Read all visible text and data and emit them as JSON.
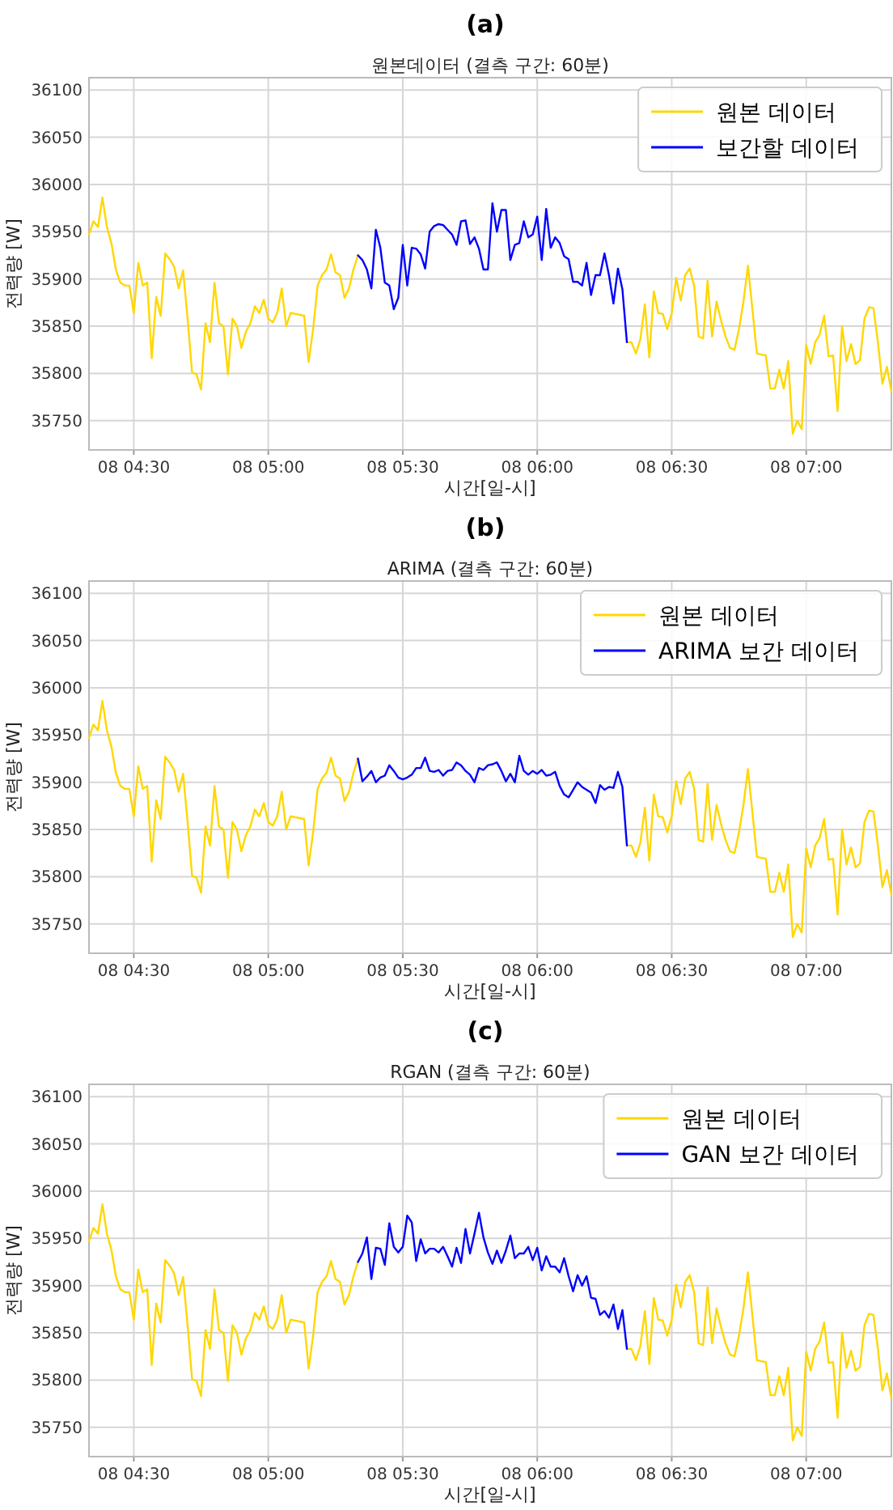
{
  "chart_data": [
    {
      "type": "line",
      "title": "(a)",
      "subtitle": "원본데이터 (결측 구간: 60분)",
      "xlabel": "시간[일-시]",
      "ylabel": "전력량 [W]",
      "ylim": [
        35719,
        36113
      ],
      "categories": [
        null,
        null,
        null,
        null,
        null,
        null,
        null,
        null,
        null,
        null,
        "08 04:30",
        null,
        null,
        null,
        null,
        null,
        null,
        null,
        null,
        null,
        null,
        null,
        null,
        null,
        null,
        null,
        null,
        null,
        null,
        null,
        null,
        null,
        null,
        null,
        null,
        null,
        null,
        null,
        null,
        null,
        "08 05:00",
        null,
        null,
        null,
        null,
        null,
        null,
        null,
        null,
        null,
        null,
        null,
        null,
        null,
        null,
        null,
        null,
        null,
        null,
        null,
        null,
        null,
        null,
        null,
        null,
        null,
        null,
        null,
        null,
        null,
        "08 05:30",
        null,
        null,
        null,
        null,
        null,
        null,
        null,
        null,
        null,
        null,
        null,
        null,
        null,
        null,
        null,
        null,
        null,
        null,
        null,
        null,
        null,
        null,
        null,
        null,
        null,
        null,
        null,
        null,
        null,
        "08 06:00",
        null,
        null,
        null,
        null,
        null,
        null,
        null,
        null,
        null,
        null,
        null,
        null,
        null,
        null,
        null,
        null,
        null,
        null,
        null,
        null,
        null,
        null,
        null,
        null,
        null,
        null,
        null,
        null,
        null,
        "08 06:30",
        null,
        null,
        null,
        null,
        null,
        null,
        null,
        null,
        null,
        null,
        null,
        null,
        null,
        null,
        null,
        null,
        null,
        null,
        null,
        null,
        null,
        null,
        null,
        null,
        null,
        null,
        null,
        null,
        null,
        "08 07:00",
        null,
        null,
        null,
        null,
        null,
        null,
        null,
        null,
        null,
        null,
        null,
        null,
        null,
        null,
        null,
        null,
        null,
        null,
        null
      ],
      "yticks": [
        35750,
        35800,
        35850,
        35900,
        35950,
        36000,
        36050,
        36100
      ],
      "grid": true,
      "legend": "top right",
      "series": [
        {
          "name": "원본 데이터",
          "color": "#ffd700",
          "values": [
            35947,
            35961,
            35955,
            35986,
            35955,
            35938,
            35910,
            35896,
            35893,
            35893,
            35864,
            35917,
            35893,
            35896,
            35816,
            35881,
            35861,
            35927,
            35921,
            35913,
            35890,
            35909,
            35858,
            35801,
            35799,
            35783,
            35853,
            35833,
            35896,
            35853,
            35850,
            35799,
            35858,
            35850,
            35827,
            35844,
            35853,
            35871,
            35864,
            35878,
            35858,
            35854,
            35864,
            35890,
            35850,
            35864,
            35863,
            35862,
            35861,
            35812,
            35847,
            35893,
            35904,
            35910,
            35926,
            35907,
            35904,
            35880,
            35890,
            35910,
            35925,
            null,
            null,
            null,
            null,
            null,
            null,
            null,
            null,
            null,
            null,
            null,
            null,
            null,
            null,
            null,
            null,
            null,
            null,
            null,
            null,
            null,
            null,
            null,
            null,
            null,
            null,
            null,
            null,
            null,
            null,
            null,
            null,
            null,
            null,
            null,
            null,
            null,
            null,
            null,
            null,
            null,
            null,
            null,
            null,
            null,
            null,
            null,
            null,
            null,
            null,
            null,
            null,
            null,
            null,
            null,
            null,
            null,
            null,
            null,
            35833,
            35833,
            35821,
            35836,
            35873,
            35817,
            35887,
            35864,
            35863,
            35847,
            35864,
            35901,
            35877,
            35904,
            35911,
            35893,
            35839,
            35837,
            35898,
            35839,
            35876,
            35856,
            35839,
            35827,
            35825,
            35847,
            35876,
            35914,
            35868,
            35821,
            35820,
            35819,
            35784,
            35784,
            35804,
            35784,
            35813,
            35736,
            35750,
            35741,
            35830,
            35810,
            35833,
            35841,
            35861,
            35818,
            35819,
            35760,
            35850,
            35813,
            35831,
            35810,
            35814,
            35858,
            35870,
            35869,
            35833,
            35789,
            35807,
            35781
          ]
        },
        {
          "name": "보간할 데이터",
          "color": "#0000ff",
          "values": [
            null,
            null,
            null,
            null,
            null,
            null,
            null,
            null,
            null,
            null,
            null,
            null,
            null,
            null,
            null,
            null,
            null,
            null,
            null,
            null,
            null,
            null,
            null,
            null,
            null,
            null,
            null,
            null,
            null,
            null,
            null,
            null,
            null,
            null,
            null,
            null,
            null,
            null,
            null,
            null,
            null,
            null,
            null,
            null,
            null,
            null,
            null,
            null,
            null,
            null,
            null,
            null,
            null,
            null,
            null,
            null,
            null,
            null,
            null,
            null,
            35925,
            35920,
            35910,
            35890,
            35952,
            35933,
            35896,
            35893,
            35868,
            35880,
            35936,
            35893,
            35933,
            35932,
            35926,
            35911,
            35950,
            35956,
            35958,
            35957,
            35952,
            35947,
            35936,
            35961,
            35962,
            35937,
            35944,
            35932,
            35910,
            35910,
            35980,
            35950,
            35973,
            35973,
            35920,
            35936,
            35938,
            35961,
            35944,
            35947,
            35966,
            35920,
            35974,
            35933,
            35944,
            35938,
            35924,
            35921,
            35897,
            35897,
            35893,
            35917,
            35883,
            35904,
            35904,
            35927,
            35904,
            35874,
            35911,
            35889,
            35833,
            null,
            null,
            null,
            null,
            null,
            null,
            null,
            null,
            null,
            null,
            null,
            null,
            null,
            null,
            null,
            null,
            null,
            null,
            null,
            null,
            null,
            null,
            null,
            null,
            null,
            null,
            null,
            null,
            null,
            null,
            null,
            null,
            null,
            null,
            null,
            null,
            null,
            null,
            null,
            null,
            null,
            null,
            null,
            null,
            null,
            null,
            null,
            null,
            null,
            null,
            null,
            null,
            null,
            null,
            null,
            null,
            null,
            null,
            null
          ]
        }
      ]
    },
    {
      "type": "line",
      "title": "(b)",
      "subtitle": "ARIMA (결측 구간: 60분)",
      "xlabel": "시간[일-시]",
      "ylabel": "전력량 [W]",
      "ylim": [
        35719,
        36113
      ],
      "categories": [
        null,
        null,
        null,
        null,
        null,
        null,
        null,
        null,
        null,
        null,
        "08 04:30",
        null,
        null,
        null,
        null,
        null,
        null,
        null,
        null,
        null,
        null,
        null,
        null,
        null,
        null,
        null,
        null,
        null,
        null,
        null,
        null,
        null,
        null,
        null,
        null,
        null,
        null,
        null,
        null,
        null,
        "08 05:00",
        null,
        null,
        null,
        null,
        null,
        null,
        null,
        null,
        null,
        null,
        null,
        null,
        null,
        null,
        null,
        null,
        null,
        null,
        null,
        null,
        null,
        null,
        null,
        null,
        null,
        null,
        null,
        null,
        null,
        "08 05:30",
        null,
        null,
        null,
        null,
        null,
        null,
        null,
        null,
        null,
        null,
        null,
        null,
        null,
        null,
        null,
        null,
        null,
        null,
        null,
        null,
        null,
        null,
        null,
        null,
        null,
        null,
        null,
        null,
        null,
        "08 06:00",
        null,
        null,
        null,
        null,
        null,
        null,
        null,
        null,
        null,
        null,
        null,
        null,
        null,
        null,
        null,
        null,
        null,
        null,
        null,
        null,
        null,
        null,
        null,
        null,
        null,
        null,
        null,
        null,
        null,
        "08 06:30",
        null,
        null,
        null,
        null,
        null,
        null,
        null,
        null,
        null,
        null,
        null,
        null,
        null,
        null,
        null,
        null,
        null,
        null,
        null,
        null,
        null,
        null,
        null,
        null,
        null,
        null,
        null,
        null,
        null,
        "08 07:00",
        null,
        null,
        null,
        null,
        null,
        null,
        null,
        null,
        null,
        null,
        null,
        null,
        null,
        null,
        null,
        null,
        null,
        null,
        null
      ],
      "yticks": [
        35750,
        35800,
        35850,
        35900,
        35950,
        36000,
        36050,
        36100
      ],
      "grid": true,
      "legend": "top right",
      "series": [
        {
          "name": "원본 데이터",
          "color": "#ffd700",
          "values": [
            35947,
            35961,
            35955,
            35986,
            35955,
            35938,
            35910,
            35896,
            35893,
            35893,
            35864,
            35917,
            35893,
            35896,
            35816,
            35881,
            35861,
            35927,
            35921,
            35913,
            35890,
            35909,
            35858,
            35801,
            35799,
            35783,
            35853,
            35833,
            35896,
            35853,
            35850,
            35799,
            35858,
            35850,
            35827,
            35844,
            35853,
            35871,
            35864,
            35878,
            35858,
            35854,
            35864,
            35890,
            35850,
            35864,
            35863,
            35862,
            35861,
            35812,
            35847,
            35893,
            35904,
            35910,
            35926,
            35907,
            35904,
            35880,
            35890,
            35910,
            35925,
            null,
            null,
            null,
            null,
            null,
            null,
            null,
            null,
            null,
            null,
            null,
            null,
            null,
            null,
            null,
            null,
            null,
            null,
            null,
            null,
            null,
            null,
            null,
            null,
            null,
            null,
            null,
            null,
            null,
            null,
            null,
            null,
            null,
            null,
            null,
            null,
            null,
            null,
            null,
            null,
            null,
            null,
            null,
            null,
            null,
            null,
            null,
            null,
            null,
            null,
            null,
            null,
            null,
            null,
            null,
            null,
            null,
            null,
            null,
            35833,
            35833,
            35821,
            35836,
            35873,
            35817,
            35887,
            35864,
            35863,
            35847,
            35864,
            35901,
            35877,
            35904,
            35911,
            35893,
            35839,
            35837,
            35898,
            35839,
            35876,
            35856,
            35839,
            35827,
            35825,
            35847,
            35876,
            35914,
            35868,
            35821,
            35820,
            35819,
            35784,
            35784,
            35804,
            35784,
            35813,
            35736,
            35750,
            35741,
            35830,
            35810,
            35833,
            35841,
            35861,
            35818,
            35819,
            35760,
            35850,
            35813,
            35831,
            35810,
            35814,
            35858,
            35870,
            35869,
            35833,
            35789,
            35807,
            35781
          ]
        },
        {
          "name": "ARIMA 보간 데이터",
          "color": "#0000ff",
          "values": [
            null,
            null,
            null,
            null,
            null,
            null,
            null,
            null,
            null,
            null,
            null,
            null,
            null,
            null,
            null,
            null,
            null,
            null,
            null,
            null,
            null,
            null,
            null,
            null,
            null,
            null,
            null,
            null,
            null,
            null,
            null,
            null,
            null,
            null,
            null,
            null,
            null,
            null,
            null,
            null,
            null,
            null,
            null,
            null,
            null,
            null,
            null,
            null,
            null,
            null,
            null,
            null,
            null,
            null,
            null,
            null,
            null,
            null,
            null,
            null,
            35925,
            35901,
            35906,
            35912,
            35900,
            35905,
            35907,
            35918,
            35912,
            35905,
            35903,
            35905,
            35908,
            35915,
            35915,
            35926,
            35912,
            35911,
            35913,
            35907,
            35912,
            35913,
            35921,
            35918,
            35912,
            35908,
            35900,
            35915,
            35913,
            35918,
            35919,
            35921,
            35912,
            35901,
            35909,
            35900,
            35928,
            35912,
            35908,
            35912,
            35909,
            35913,
            35907,
            35908,
            35911,
            35896,
            35887,
            35884,
            35892,
            35900,
            35895,
            35892,
            35889,
            35878,
            35897,
            35892,
            35895,
            35894,
            35911,
            35895,
            35833,
            null,
            null,
            null,
            null,
            null,
            null,
            null,
            null,
            null,
            null,
            null,
            null,
            null,
            null,
            null,
            null,
            null,
            null,
            null,
            null,
            null,
            null,
            null,
            null,
            null,
            null,
            null,
            null,
            null,
            null,
            null,
            null,
            null,
            null,
            null,
            null,
            null,
            null,
            null,
            null,
            null,
            null,
            null,
            null,
            null,
            null,
            null,
            null,
            null,
            null,
            null,
            null,
            null,
            null,
            null,
            null,
            null,
            null,
            null
          ]
        }
      ]
    },
    {
      "type": "line",
      "title": "(c)",
      "subtitle": "RGAN (결측 구간: 60분)",
      "xlabel": "시간[일-시]",
      "ylabel": "전력량 [W]",
      "ylim": [
        35719,
        36113
      ],
      "categories": [
        null,
        null,
        null,
        null,
        null,
        null,
        null,
        null,
        null,
        null,
        "08 04:30",
        null,
        null,
        null,
        null,
        null,
        null,
        null,
        null,
        null,
        null,
        null,
        null,
        null,
        null,
        null,
        null,
        null,
        null,
        null,
        null,
        null,
        null,
        null,
        null,
        null,
        null,
        null,
        null,
        null,
        "08 05:00",
        null,
        null,
        null,
        null,
        null,
        null,
        null,
        null,
        null,
        null,
        null,
        null,
        null,
        null,
        null,
        null,
        null,
        null,
        null,
        null,
        null,
        null,
        null,
        null,
        null,
        null,
        null,
        null,
        null,
        "08 05:30",
        null,
        null,
        null,
        null,
        null,
        null,
        null,
        null,
        null,
        null,
        null,
        null,
        null,
        null,
        null,
        null,
        null,
        null,
        null,
        null,
        null,
        null,
        null,
        null,
        null,
        null,
        null,
        null,
        null,
        "08 06:00",
        null,
        null,
        null,
        null,
        null,
        null,
        null,
        null,
        null,
        null,
        null,
        null,
        null,
        null,
        null,
        null,
        null,
        null,
        null,
        null,
        null,
        null,
        null,
        null,
        null,
        null,
        null,
        null,
        null,
        "08 06:30",
        null,
        null,
        null,
        null,
        null,
        null,
        null,
        null,
        null,
        null,
        null,
        null,
        null,
        null,
        null,
        null,
        null,
        null,
        null,
        null,
        null,
        null,
        null,
        null,
        null,
        null,
        null,
        null,
        null,
        "08 07:00",
        null,
        null,
        null,
        null,
        null,
        null,
        null,
        null,
        null,
        null,
        null,
        null,
        null,
        null,
        null,
        null,
        null,
        null,
        null
      ],
      "yticks": [
        35750,
        35800,
        35850,
        35900,
        35950,
        36000,
        36050,
        36100
      ],
      "grid": true,
      "legend": "top right",
      "series": [
        {
          "name": "원본 데이터",
          "color": "#ffd700",
          "values": [
            35947,
            35961,
            35955,
            35986,
            35955,
            35938,
            35910,
            35896,
            35893,
            35893,
            35864,
            35917,
            35893,
            35896,
            35816,
            35881,
            35861,
            35927,
            35921,
            35913,
            35890,
            35909,
            35858,
            35801,
            35799,
            35783,
            35853,
            35833,
            35896,
            35853,
            35850,
            35799,
            35858,
            35850,
            35827,
            35844,
            35853,
            35871,
            35864,
            35878,
            35858,
            35854,
            35864,
            35890,
            35850,
            35864,
            35863,
            35862,
            35861,
            35812,
            35847,
            35893,
            35904,
            35910,
            35926,
            35907,
            35904,
            35880,
            35890,
            35910,
            35925,
            null,
            null,
            null,
            null,
            null,
            null,
            null,
            null,
            null,
            null,
            null,
            null,
            null,
            null,
            null,
            null,
            null,
            null,
            null,
            null,
            null,
            null,
            null,
            null,
            null,
            null,
            null,
            null,
            null,
            null,
            null,
            null,
            null,
            null,
            null,
            null,
            null,
            null,
            null,
            null,
            null,
            null,
            null,
            null,
            null,
            null,
            null,
            null,
            null,
            null,
            null,
            null,
            null,
            null,
            null,
            null,
            null,
            null,
            null,
            35833,
            35833,
            35821,
            35836,
            35873,
            35817,
            35887,
            35864,
            35863,
            35847,
            35864,
            35901,
            35877,
            35904,
            35911,
            35893,
            35839,
            35837,
            35898,
            35839,
            35876,
            35856,
            35839,
            35827,
            35825,
            35847,
            35876,
            35914,
            35868,
            35821,
            35820,
            35819,
            35784,
            35784,
            35804,
            35784,
            35813,
            35736,
            35750,
            35741,
            35830,
            35810,
            35833,
            35841,
            35861,
            35818,
            35819,
            35760,
            35850,
            35813,
            35831,
            35810,
            35814,
            35858,
            35870,
            35869,
            35833,
            35789,
            35807,
            35781
          ]
        },
        {
          "name": "GAN 보간 데이터",
          "color": "#0000ff",
          "values": [
            null,
            null,
            null,
            null,
            null,
            null,
            null,
            null,
            null,
            null,
            null,
            null,
            null,
            null,
            null,
            null,
            null,
            null,
            null,
            null,
            null,
            null,
            null,
            null,
            null,
            null,
            null,
            null,
            null,
            null,
            null,
            null,
            null,
            null,
            null,
            null,
            null,
            null,
            null,
            null,
            null,
            null,
            null,
            null,
            null,
            null,
            null,
            null,
            null,
            null,
            null,
            null,
            null,
            null,
            null,
            null,
            null,
            null,
            null,
            null,
            35925,
            35934,
            35951,
            35907,
            35940,
            35939,
            35922,
            35966,
            35941,
            35935,
            35941,
            35974,
            35967,
            35926,
            35949,
            35934,
            35939,
            35939,
            35935,
            35941,
            35931,
            35920,
            35940,
            35924,
            35960,
            35934,
            35955,
            35977,
            35951,
            35935,
            35923,
            35937,
            35924,
            35937,
            35953,
            35929,
            35934,
            35934,
            35941,
            35927,
            35940,
            35916,
            35931,
            35920,
            35920,
            35914,
            35929,
            35910,
            35894,
            35911,
            35900,
            35910,
            35887,
            35886,
            35869,
            35873,
            35866,
            35880,
            35854,
            35874,
            35833,
            null,
            null,
            null,
            null,
            null,
            null,
            null,
            null,
            null,
            null,
            null,
            null,
            null,
            null,
            null,
            null,
            null,
            null,
            null,
            null,
            null,
            null,
            null,
            null,
            null,
            null,
            null,
            null,
            null,
            null,
            null,
            null,
            null,
            null,
            null,
            null,
            null,
            null,
            null,
            null,
            null,
            null,
            null,
            null,
            null,
            null,
            null,
            null,
            null,
            null,
            null,
            null,
            null,
            null,
            null,
            null,
            null,
            null,
            null
          ]
        }
      ]
    }
  ]
}
